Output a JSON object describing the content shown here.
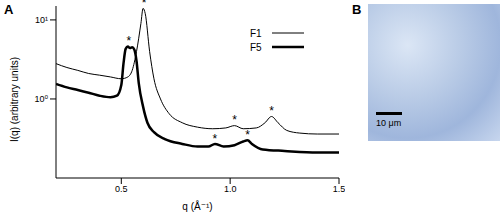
{
  "chart_data": {
    "type": "line",
    "title": "A",
    "x_label": "q (Å⁻¹)",
    "y_label": "I(q) (arbitrary units)",
    "log": "y",
    "grid": false,
    "legend": "upper right",
    "xlim": [
      0.2,
      1.5
    ],
    "xticks": [
      0.5,
      {
        "value": 1,
        "label": "1.0"
      },
      1.5
    ],
    "ylim": [
      0.1,
      15
    ],
    "yticks": [
      {
        "value": 1,
        "label": "10⁰"
      },
      {
        "value": 10,
        "label": "10¹"
      }
    ],
    "series": [
      {
        "name": "F1",
        "color": "#000000",
        "line_style": "solid",
        "x": [
          0.2,
          0.25,
          0.3,
          0.35,
          0.4,
          0.45,
          0.5,
          0.53,
          0.55,
          0.57,
          0.59,
          0.6,
          0.61,
          0.63,
          0.65,
          0.68,
          0.72,
          0.78,
          0.85,
          0.92,
          0.98,
          1.02,
          1.06,
          1.12,
          1.16,
          1.19,
          1.22,
          1.26,
          1.32,
          1.4,
          1.5
        ],
        "values": [
          2.8,
          2.5,
          2.3,
          2.1,
          2.0,
          1.9,
          1.8,
          1.9,
          2.3,
          4,
          9,
          14,
          12,
          4,
          1.8,
          1.0,
          0.65,
          0.5,
          0.44,
          0.42,
          0.43,
          0.46,
          0.42,
          0.43,
          0.5,
          0.6,
          0.5,
          0.4,
          0.37,
          0.36,
          0.36
        ]
      },
      {
        "name": "F5",
        "color": "#000000",
        "line_style": "solid",
        "x": [
          0.2,
          0.25,
          0.3,
          0.35,
          0.4,
          0.45,
          0.48,
          0.5,
          0.51,
          0.52,
          0.53,
          0.54,
          0.55,
          0.56,
          0.57,
          0.58,
          0.6,
          0.62,
          0.65,
          0.7,
          0.78,
          0.85,
          0.9,
          0.93,
          0.97,
          1.02,
          1.06,
          1.08,
          1.1,
          1.15,
          1.25,
          1.4,
          1.5
        ],
        "values": [
          1.55,
          1.4,
          1.3,
          1.2,
          1.1,
          1.05,
          1.1,
          1.5,
          2.8,
          4.3,
          4.6,
          4.4,
          4.5,
          4.2,
          3.0,
          1.6,
          0.8,
          0.5,
          0.38,
          0.31,
          0.27,
          0.25,
          0.25,
          0.27,
          0.25,
          0.26,
          0.29,
          0.3,
          0.27,
          0.23,
          0.22,
          0.21,
          0.21
        ]
      }
    ],
    "annotations": [
      {
        "text": "*",
        "x": 0.605,
        "y": 14.5
      },
      {
        "text": "*",
        "x": 0.535,
        "y": 4.8
      },
      {
        "text": "*",
        "x": 1.02,
        "y": 0.48
      },
      {
        "text": "*",
        "x": 1.19,
        "y": 0.62
      },
      {
        "text": "*",
        "x": 0.93,
        "y": 0.28
      },
      {
        "text": "*",
        "x": 1.08,
        "y": 0.31
      }
    ]
  },
  "image_panel": {
    "label": "B",
    "scale_bar": "10 μm"
  }
}
